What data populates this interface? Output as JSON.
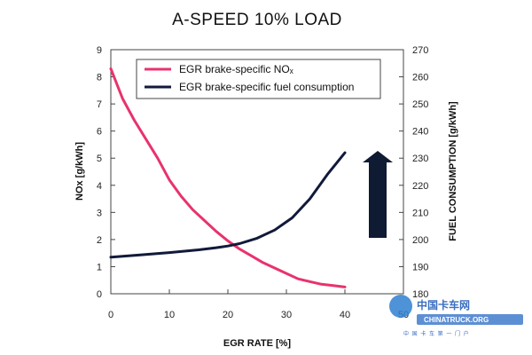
{
  "chart_data": {
    "type": "line",
    "title": "A-SPEED 10% LOAD",
    "xlabel": "EGR RATE [%]",
    "ylabel_left": "NOx [g/kWh]",
    "ylabel_right": "FUEL CONSUMPTION [g/kWh]",
    "xlim": [
      0,
      50
    ],
    "ylim_left": [
      0,
      9
    ],
    "ylim_right": [
      180,
      270
    ],
    "x_ticks": [
      "0",
      "10",
      "20",
      "30",
      "40",
      "50"
    ],
    "y_left_ticks": [
      "0",
      "1",
      "2",
      "3",
      "4",
      "5",
      "6",
      "7",
      "8",
      "9"
    ],
    "y_right_ticks": [
      "180",
      "190",
      "200",
      "210",
      "220",
      "230",
      "240",
      "250",
      "260",
      "270"
    ],
    "legend_position": "top-left",
    "series": [
      {
        "name": "EGR brake-specific NOₓ",
        "axis": "left",
        "color": "#e8336d",
        "x": [
          0,
          2,
          4,
          6,
          8,
          10,
          12,
          14,
          16,
          18,
          20,
          22,
          24,
          26,
          28,
          30,
          32,
          34,
          36,
          38,
          40
        ],
        "values": [
          8.3,
          7.2,
          6.4,
          5.7,
          5.0,
          4.2,
          3.6,
          3.1,
          2.7,
          2.3,
          1.95,
          1.65,
          1.4,
          1.15,
          0.95,
          0.75,
          0.55,
          0.45,
          0.35,
          0.3,
          0.25
        ]
      },
      {
        "name": "EGR brake-specific fuel consumption",
        "axis": "right",
        "color": "#111a3a",
        "x": [
          0,
          5,
          10,
          15,
          18,
          20,
          22,
          25,
          28,
          31,
          34,
          37,
          40
        ],
        "values": [
          193.5,
          194.3,
          195.2,
          196.2,
          197.0,
          197.6,
          198.5,
          200.5,
          203.5,
          208.0,
          215.0,
          224.0,
          232.0
        ]
      }
    ],
    "annotation": "upward-arrow"
  },
  "watermark": {
    "main": "中国卡车网",
    "sub": "CHINATRUCK.ORG",
    "tag": "中 国 卡 车 第 一 门 户"
  }
}
